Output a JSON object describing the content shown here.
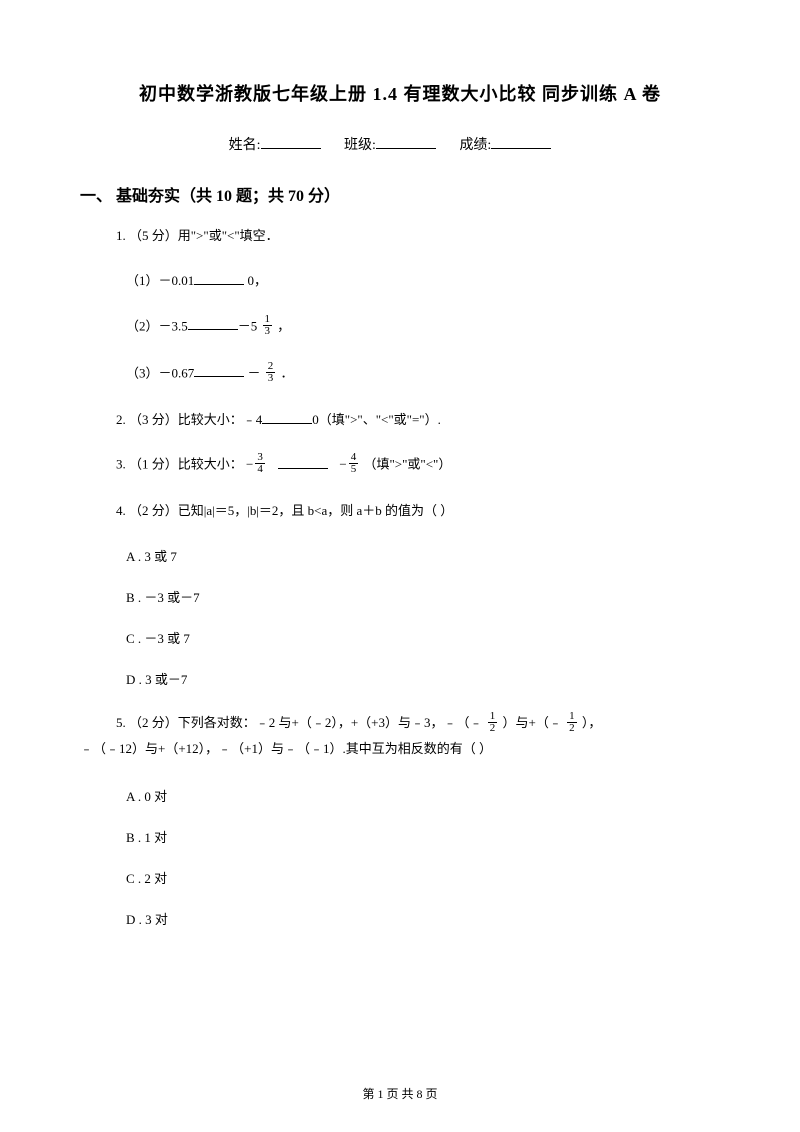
{
  "title": "初中数学浙教版七年级上册 1.4 有理数大小比较  同步训练 A 卷",
  "info": {
    "name_label": "姓名:",
    "class_label": "班级:",
    "score_label": "成绩:"
  },
  "section": {
    "header": "一、 基础夯实（共 10 题；共 70 分）"
  },
  "q1": {
    "stem": "1. （5 分）用\">\"或\"<\"填空．",
    "s1a": "（1）－0.01",
    "s1b": " 0，",
    "s2a": "（2）－3.5",
    "s2b": "－5 ",
    "s2c": " ，",
    "s3a": "（3）－0.67",
    "s3b": " － ",
    "s3c": " ．",
    "frac1_num": "1",
    "frac1_den": "3",
    "frac2_num": "2",
    "frac2_den": "3"
  },
  "q2": {
    "a": "2. （3 分）比较大小：﹣4",
    "b": "0（填\">\"、\"<\"或\"=\"）."
  },
  "q3": {
    "a": "3. （1 分）比较大小： ",
    "b": " （填\">\"或\"<\"）",
    "f1n": "3",
    "f1d": "4",
    "f2n": "4",
    "f2d": "5"
  },
  "q4": {
    "stem": "4.  （2 分）已知|a|＝5，|b|＝2，且 b<a，则 a＋b 的值为（     ）",
    "A": "A . 3 或 7",
    "B": "B . －3 或－7",
    "C": "C . －3 或 7",
    "D": "D . 3 或－7"
  },
  "q5": {
    "line1a": "5. （2 分）下列各对数：﹣2 与+（﹣2），+（+3）与﹣3，﹣（﹣ ",
    "line1b": " ）与+（﹣ ",
    "line1c": " ），",
    "line2": "﹣（﹣12）与+（+12），﹣（+1）与﹣（﹣1）.其中互为相反数的有（     ）",
    "fn": "1",
    "fd": "2",
    "A": "A . 0 对",
    "B": "B . 1 对",
    "C": "C . 2 对",
    "D": "D . 3 对"
  },
  "footer": "第 1 页 共 8 页"
}
